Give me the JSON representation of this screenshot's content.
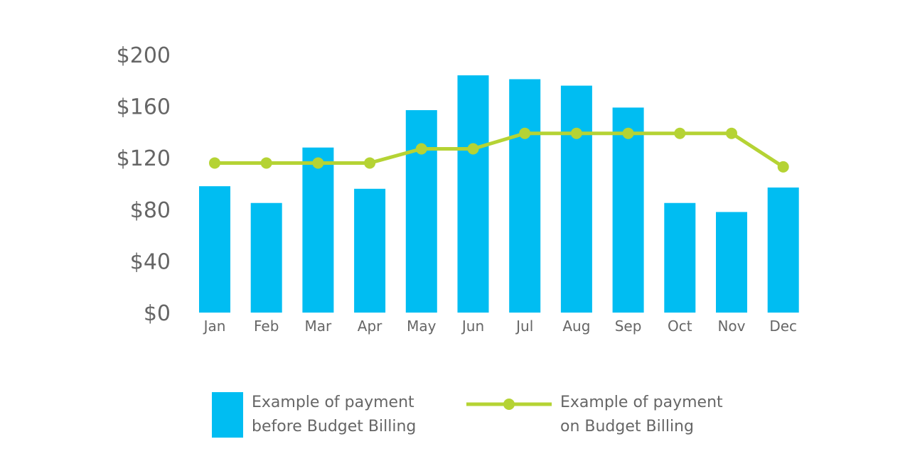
{
  "chart_data": {
    "type": "bar",
    "title": "",
    "xlabel": "",
    "ylabel": "",
    "ylim": [
      0,
      200
    ],
    "yticks": [
      0,
      40,
      80,
      120,
      160,
      200
    ],
    "ytick_labels": [
      "$0",
      "$40",
      "$80",
      "$120",
      "$160",
      "$200"
    ],
    "categories": [
      "Jan",
      "Feb",
      "Mar",
      "Apr",
      "May",
      "Jun",
      "Jul",
      "Aug",
      "Sep",
      "Oct",
      "Nov",
      "Dec"
    ],
    "grid": false,
    "legend_placement": "bottom",
    "series": [
      {
        "name": "Example of payment before Budget Billing",
        "type": "bar",
        "color": "#00BDF2",
        "values": [
          98,
          85,
          128,
          96,
          157,
          184,
          181,
          176,
          159,
          85,
          78,
          97
        ]
      },
      {
        "name": "Example of payment on Budget Billing",
        "type": "line",
        "color": "#B5D334",
        "values": [
          116,
          116,
          116,
          116,
          127,
          127,
          139,
          139,
          139,
          139,
          139,
          113
        ]
      }
    ]
  },
  "legend": [
    {
      "line1": "Example of payment",
      "line2": "before Budget Billing"
    },
    {
      "line1": "Example of payment",
      "line2": "on Budget Billing"
    }
  ]
}
